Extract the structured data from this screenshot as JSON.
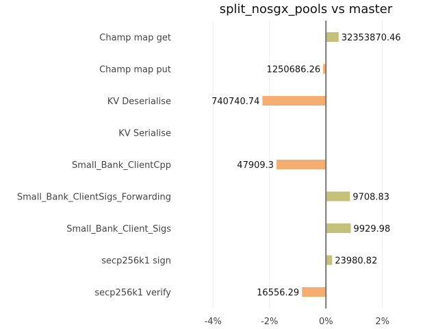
{
  "chart_data": {
    "type": "bar",
    "orientation": "horizontal",
    "title": "split_nosgx_pools vs master",
    "xlabel": "",
    "ylabel": "",
    "categories": [
      "Champ map get",
      "Champ map put",
      "KV Deserialise",
      "KV Serialise",
      "Small_Bank_ClientCpp",
      "Small_Bank_ClientSigs_Forwarding",
      "Small_Bank_Client_Sigs",
      "secp256k1 sign",
      "secp256k1 verify"
    ],
    "values": [
      0.45,
      -0.1,
      -2.25,
      null,
      -1.75,
      0.85,
      0.88,
      0.22,
      -0.85
    ],
    "value_labels": [
      "32353870.46",
      "1250686.26",
      "740740.74",
      "",
      "47909.3",
      "9708.83",
      "9929.98",
      "23980.82",
      "16556.29"
    ],
    "xticks": [
      -4,
      -2,
      0,
      2
    ],
    "xtick_labels": [
      "-4%",
      "-2%",
      "0%",
      "2%"
    ],
    "xlim": [
      -5,
      3
    ],
    "grid": true,
    "positive_color": "#c5c07a",
    "negative_color": "#f5ae72"
  }
}
